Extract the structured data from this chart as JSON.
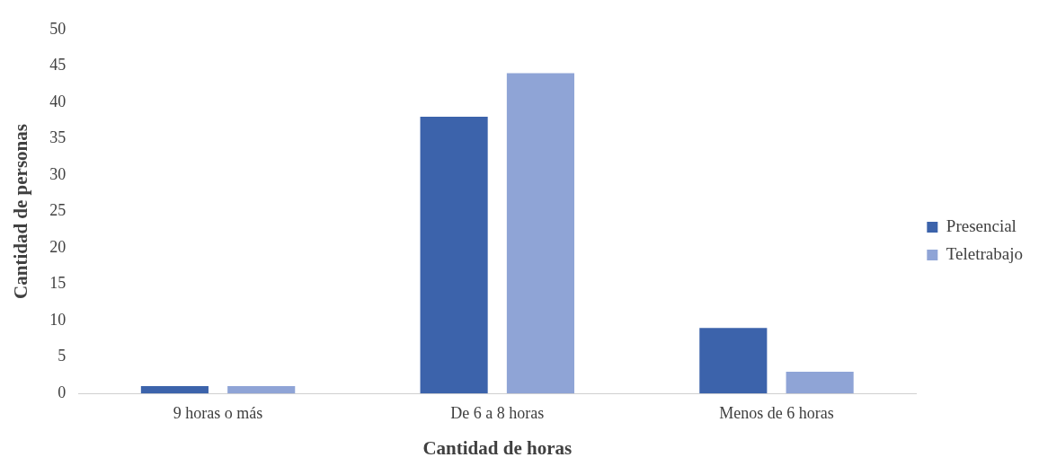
{
  "chart_data": {
    "type": "bar",
    "xlabel": "Cantidad de horas",
    "ylabel": "Cantidad de personas",
    "categories": [
      "9 horas o más",
      "De 6 a 8 horas",
      "Menos de 6 horas"
    ],
    "series": [
      {
        "name": "Presencial",
        "color": "#3c63ab",
        "values": [
          1,
          38,
          9
        ]
      },
      {
        "name": "Teletrabajo",
        "color": "#8fa4d6",
        "values": [
          1,
          44,
          3
        ]
      }
    ],
    "ylim": [
      0,
      50
    ],
    "yticks": [
      0,
      5,
      10,
      15,
      20,
      25,
      30,
      35,
      40,
      45,
      50
    ],
    "grid": false,
    "legend": "right"
  }
}
